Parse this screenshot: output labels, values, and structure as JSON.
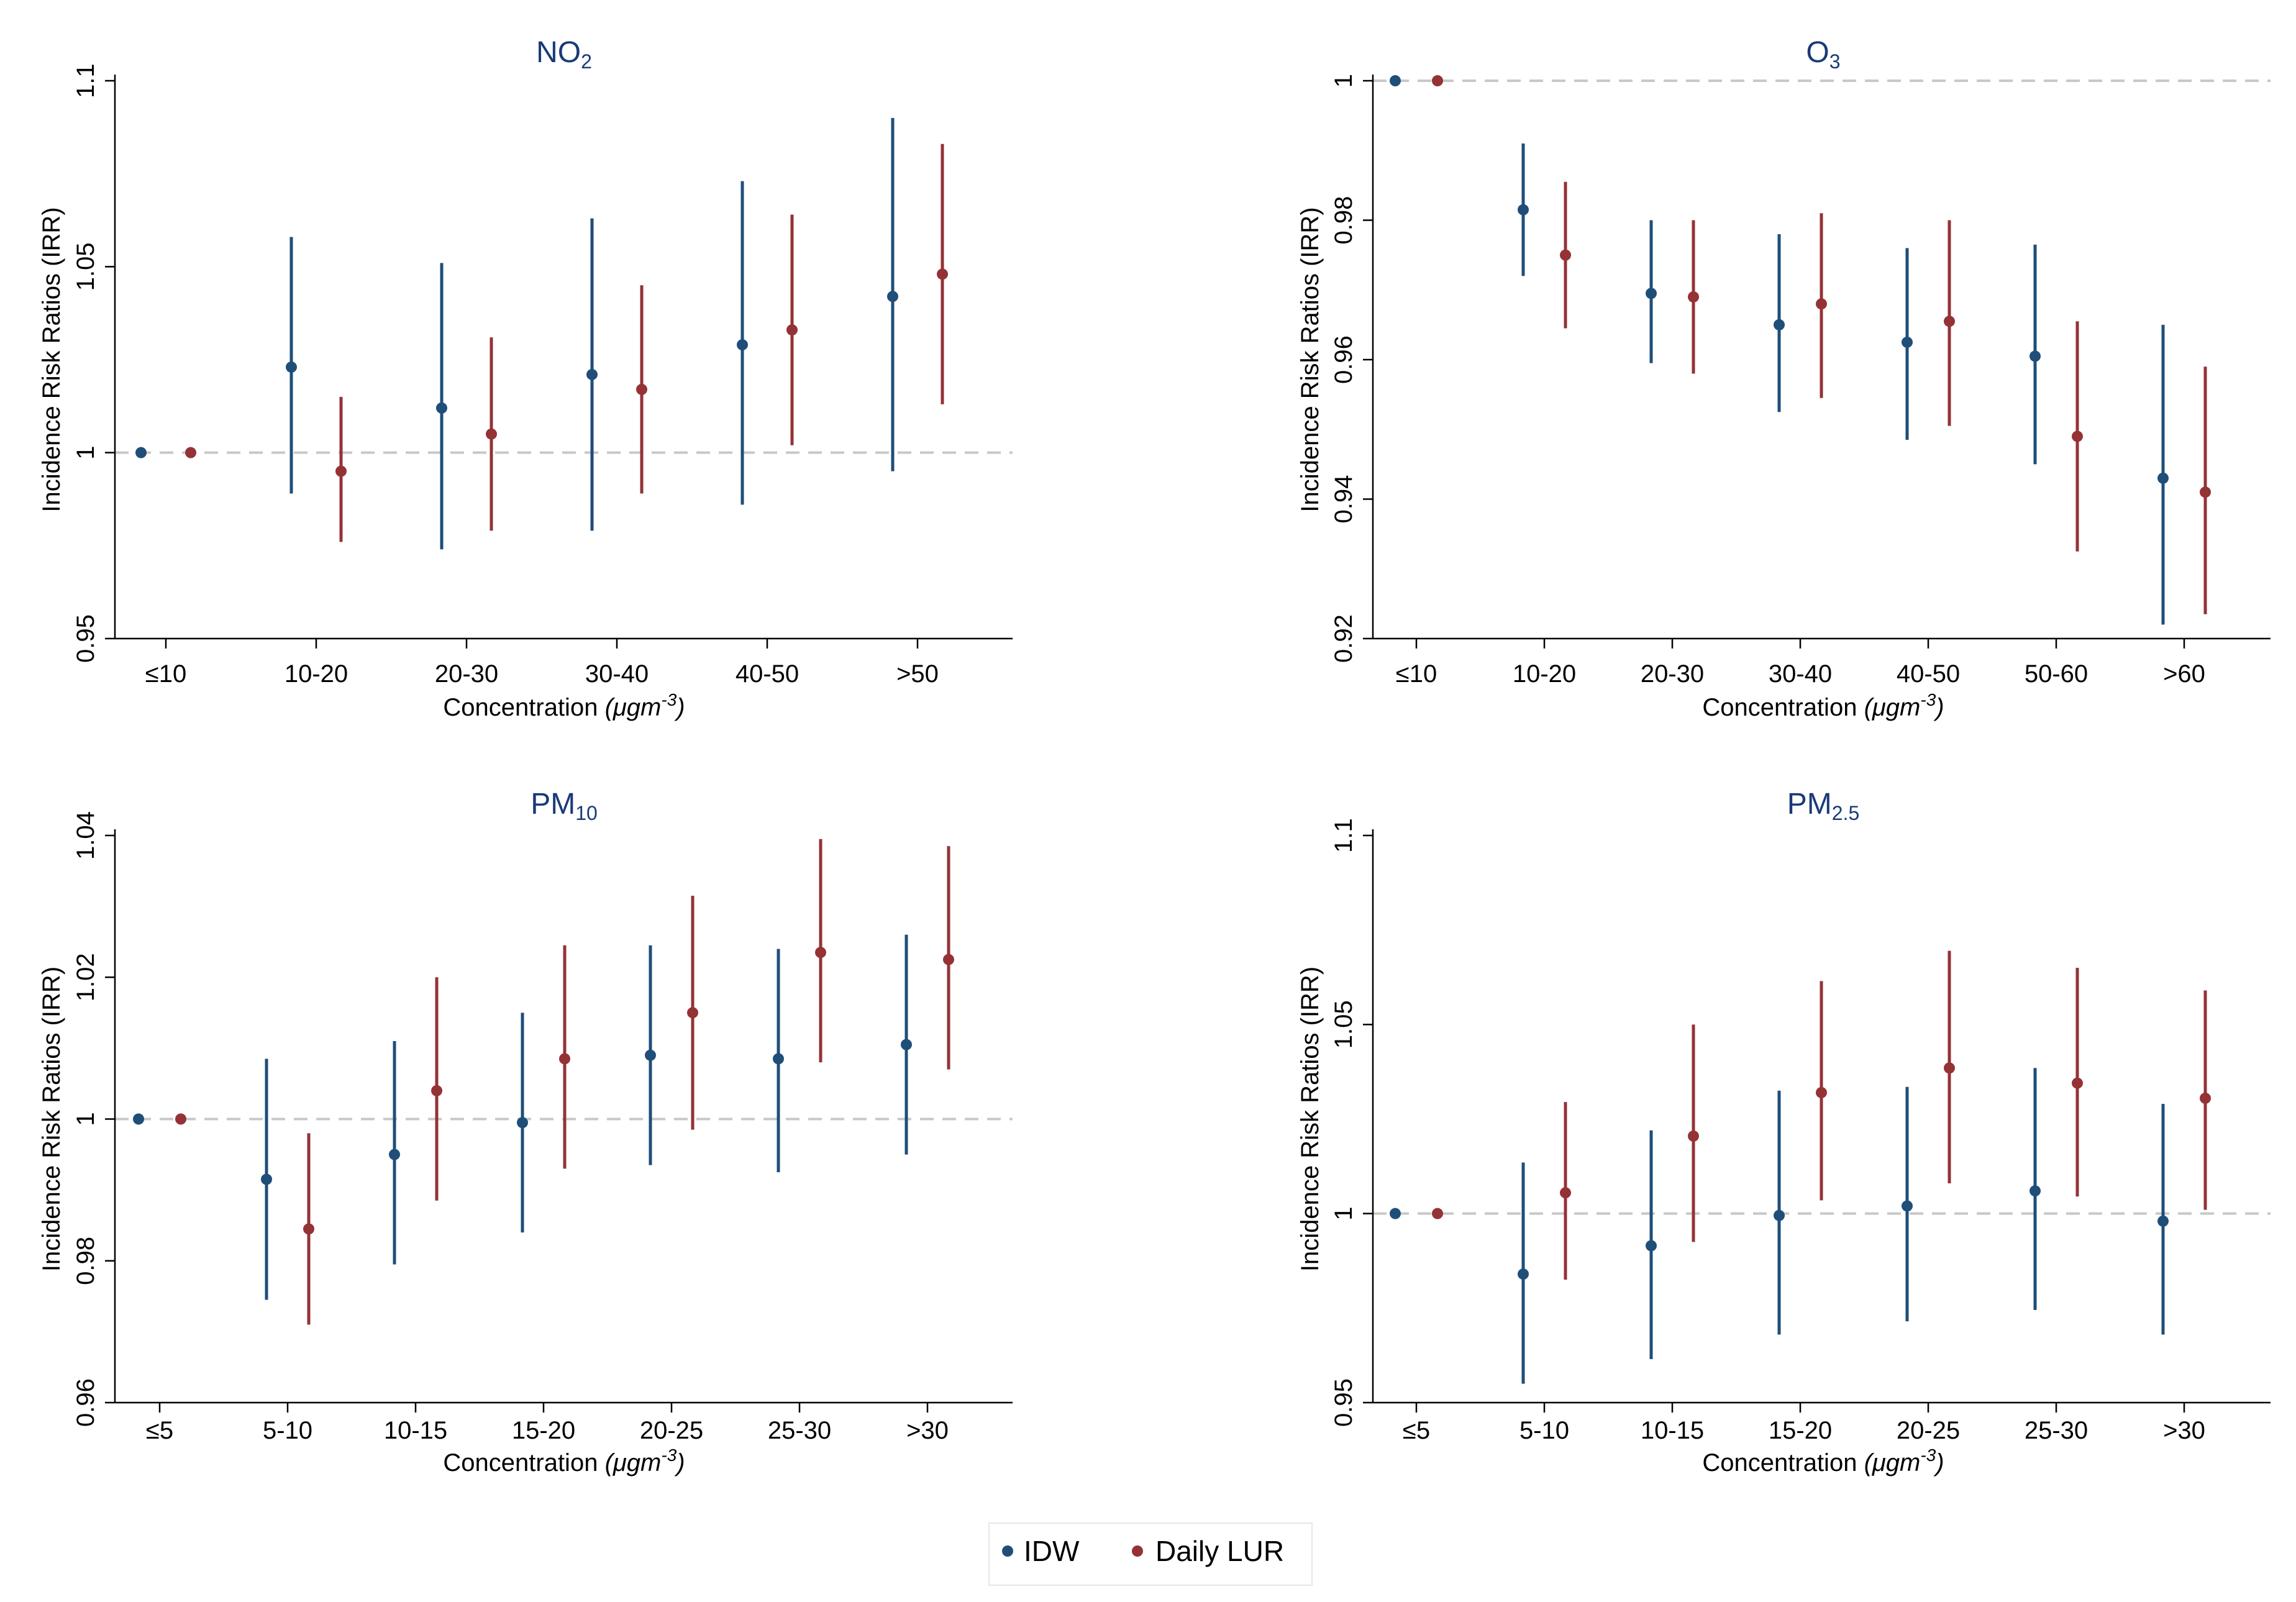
{
  "colors": {
    "idw": "#1f4e79",
    "lur": "#943236",
    "title": "#1a3a78",
    "refline": "#c8c8c8",
    "axis": "#000000"
  },
  "legend": {
    "items": [
      {
        "key": "idw",
        "label": "IDW"
      },
      {
        "key": "lur",
        "label": "Daily LUR"
      }
    ]
  },
  "chart_data": [
    {
      "type": "scatter",
      "title_main": "NO",
      "title_sub": "2",
      "ylabel": "Incidence Risk Ratios (IRR)",
      "xlabel": "Concentration",
      "xlabel_unit": "(μgm",
      "xlabel_unit_sup": "-3",
      "xlabel_unit_close": ")",
      "ylim": [
        0.95,
        1.1
      ],
      "yticks": [
        0.95,
        1,
        1.05,
        1.1
      ],
      "ytick_labels": [
        "0.95",
        "1",
        "1.05",
        "1.1"
      ],
      "ref_line": 1,
      "categories": [
        "≤10",
        "10-20",
        "20-30",
        "30-40",
        "40-50",
        ">50"
      ],
      "series": [
        {
          "name": "IDW",
          "key": "idw",
          "estimate": [
            1.0,
            1.023,
            1.012,
            1.021,
            1.029,
            1.042
          ],
          "lower": [
            null,
            0.989,
            0.974,
            0.979,
            0.986,
            0.995
          ],
          "upper": [
            null,
            1.058,
            1.051,
            1.063,
            1.073,
            1.09
          ]
        },
        {
          "name": "Daily LUR",
          "key": "lur",
          "estimate": [
            1.0,
            0.995,
            1.005,
            1.017,
            1.033,
            1.048
          ],
          "lower": [
            null,
            0.976,
            0.979,
            0.989,
            1.002,
            1.013
          ],
          "upper": [
            null,
            1.015,
            1.031,
            1.045,
            1.064,
            1.083
          ]
        }
      ]
    },
    {
      "type": "scatter",
      "title_main": "O",
      "title_sub": "3",
      "ylabel": "Incidence Risk Ratios (IRR)",
      "xlabel": "Concentration",
      "xlabel_unit": "(μgm",
      "xlabel_unit_sup": "-3",
      "xlabel_unit_close": ")",
      "ylim": [
        0.92,
        1.0
      ],
      "yticks": [
        0.92,
        0.94,
        0.96,
        0.98,
        1
      ],
      "ytick_labels": [
        "0.92",
        "0.94",
        "0.96",
        "0.98",
        "1"
      ],
      "ref_line": 1,
      "categories": [
        "≤10",
        "10-20",
        "20-30",
        "30-40",
        "40-50",
        "50-60",
        ">60"
      ],
      "series": [
        {
          "name": "IDW",
          "key": "idw",
          "estimate": [
            1.0,
            0.9815,
            0.9695,
            0.965,
            0.9625,
            0.9605,
            0.943
          ],
          "lower": [
            null,
            0.972,
            0.9595,
            0.9525,
            0.9485,
            0.945,
            0.922
          ],
          "upper": [
            null,
            0.991,
            0.98,
            0.978,
            0.976,
            0.9765,
            0.965
          ]
        },
        {
          "name": "Daily LUR",
          "key": "lur",
          "estimate": [
            1.0,
            0.975,
            0.969,
            0.968,
            0.9655,
            0.949,
            0.941
          ],
          "lower": [
            null,
            0.9645,
            0.958,
            0.9545,
            0.9505,
            0.9325,
            0.9235
          ],
          "upper": [
            null,
            0.9855,
            0.98,
            0.981,
            0.98,
            0.9655,
            0.959
          ]
        }
      ]
    },
    {
      "type": "scatter",
      "title_main": "PM",
      "title_sub": "10",
      "ylabel": "Incidence Risk Ratios (IRR)",
      "xlabel": "Concentration",
      "xlabel_unit": "(μgm",
      "xlabel_unit_sup": "-3",
      "xlabel_unit_close": ")",
      "ylim": [
        0.96,
        1.04
      ],
      "yticks": [
        0.96,
        0.98,
        1,
        1.02,
        1.04
      ],
      "ytick_labels": [
        "0.96",
        "0.98",
        "1",
        "1.02",
        "1.04"
      ],
      "ref_line": 1,
      "categories": [
        "≤5",
        "5-10",
        "10-15",
        "15-20",
        "20-25",
        "25-30",
        ">30"
      ],
      "series": [
        {
          "name": "IDW",
          "key": "idw",
          "estimate": [
            1.0,
            0.9915,
            0.995,
            0.9995,
            1.009,
            1.0085,
            1.0105
          ],
          "lower": [
            null,
            0.9745,
            0.9795,
            0.984,
            0.9935,
            0.9925,
            0.995
          ],
          "upper": [
            null,
            1.0085,
            1.011,
            1.015,
            1.0245,
            1.024,
            1.026
          ]
        },
        {
          "name": "Daily LUR",
          "key": "lur",
          "estimate": [
            1.0,
            0.9845,
            1.004,
            1.0085,
            1.015,
            1.0235,
            1.0225
          ],
          "lower": [
            null,
            0.971,
            0.9885,
            0.993,
            0.9985,
            1.008,
            1.007
          ],
          "upper": [
            null,
            0.998,
            1.02,
            1.0245,
            1.0315,
            1.0395,
            1.0385
          ]
        }
      ]
    },
    {
      "type": "scatter",
      "title_main": "PM",
      "title_sub": "2.5",
      "ylabel": "Incidence Risk Ratios (IRR)",
      "xlabel": "Concentration",
      "xlabel_unit": "(μgm",
      "xlabel_unit_sup": "-3",
      "xlabel_unit_close": ")",
      "ylim": [
        0.95,
        1.1
      ],
      "yticks": [
        0.95,
        1,
        1.05,
        1.1
      ],
      "ytick_labels": [
        "0.95",
        "1",
        "1.05",
        "1.1"
      ],
      "ref_line": 1,
      "categories": [
        "≤5",
        "5-10",
        "10-15",
        "15-20",
        "20-25",
        "25-30",
        ">30"
      ],
      "series": [
        {
          "name": "IDW",
          "key": "idw",
          "estimate": [
            1.0,
            0.984,
            0.9915,
            0.9995,
            1.002,
            1.006,
            0.998
          ],
          "lower": [
            null,
            0.955,
            0.9615,
            0.968,
            0.9715,
            0.9745,
            0.968
          ],
          "upper": [
            null,
            1.0135,
            1.022,
            1.0325,
            1.0335,
            1.0385,
            1.029
          ]
        },
        {
          "name": "Daily LUR",
          "key": "lur",
          "estimate": [
            1.0,
            1.0055,
            1.0205,
            1.032,
            1.0385,
            1.0345,
            1.0305
          ],
          "lower": [
            null,
            0.9825,
            0.9925,
            1.0035,
            1.008,
            1.0045,
            1.001
          ],
          "upper": [
            null,
            1.0295,
            1.05,
            1.0615,
            1.0695,
            1.065,
            1.059
          ]
        }
      ]
    }
  ]
}
